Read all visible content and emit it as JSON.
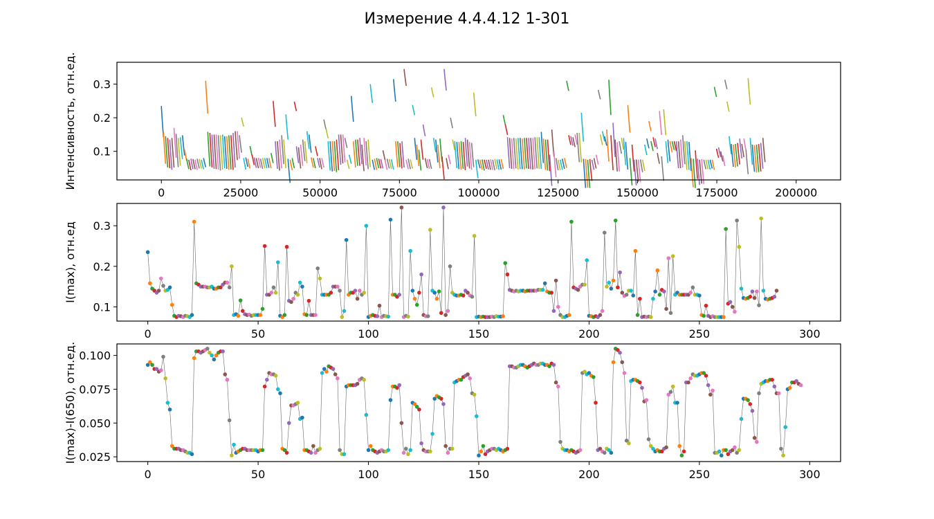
{
  "figure_title": "Измерение 4.4.4.12 1-301",
  "colors": [
    "#1f77b4",
    "#ff7f0e",
    "#2ca02c",
    "#d62728",
    "#9467bd",
    "#8c564b",
    "#e377c2",
    "#7f7f7f",
    "#bcbd22",
    "#17becf"
  ],
  "chart_data": [
    {
      "type": "line",
      "ylabel": "Интенсивность, отн.ед.",
      "xlim": [
        -14000,
        214000
      ],
      "ylim": [
        0.015,
        0.365
      ],
      "xticks": [
        0,
        25000,
        50000,
        75000,
        100000,
        125000,
        150000,
        175000,
        200000
      ],
      "xtick_labels": [
        "0",
        "25000",
        "50000",
        "75000",
        "100000",
        "125000",
        "150000",
        "175000",
        "200000"
      ],
      "yticks": [
        0.1,
        0.2,
        0.3
      ],
      "ytick_labels": [
        "0.1",
        "0.2",
        "0.3"
      ],
      "series_count": 301,
      "points_per_series": 665,
      "note_values": "each of 301 series spans ~665 x-units starting at x = 665*i, falling from I(max) toward I(max)-(I(max)-I(650))"
    },
    {
      "type": "scatter",
      "ylabel": "I(max), отн.ед",
      "xlim": [
        -14,
        314
      ],
      "ylim": [
        0.065,
        0.355
      ],
      "xticks": [
        0,
        50,
        100,
        150,
        200,
        250,
        300
      ],
      "xtick_labels": [
        "0",
        "50",
        "100",
        "150",
        "200",
        "250",
        "300"
      ],
      "yticks": [
        0.1,
        0.2,
        0.3
      ],
      "ytick_labels": [
        "0.1",
        "0.2",
        "0.3"
      ],
      "x_start": 0,
      "values": [
        0.235,
        0.158,
        0.145,
        0.14,
        0.135,
        0.14,
        0.17,
        0.152,
        0.14,
        0.142,
        0.148,
        0.105,
        0.078,
        0.075,
        0.078,
        0.077,
        0.075,
        0.078,
        0.077,
        0.075,
        0.08,
        0.31,
        0.158,
        0.155,
        0.15,
        0.15,
        0.15,
        0.148,
        0.148,
        0.15,
        0.145,
        0.145,
        0.148,
        0.148,
        0.155,
        0.16,
        0.16,
        0.148,
        0.2,
        0.08,
        0.082,
        0.078,
        0.116,
        0.09,
        0.082,
        0.08,
        0.081,
        0.078,
        0.08,
        0.08,
        0.08,
        0.08,
        0.095,
        0.25,
        0.13,
        0.13,
        0.135,
        0.148,
        0.135,
        0.21,
        0.078,
        0.075,
        0.08,
        0.248,
        0.115,
        0.112,
        0.12,
        0.135,
        0.13,
        0.16,
        0.15,
        0.082,
        0.08,
        0.115,
        0.08,
        0.08,
        0.08,
        0.195,
        0.17,
        0.13,
        0.13,
        0.13,
        0.13,
        0.135,
        0.15,
        0.15,
        0.15,
        0.14,
        0.075,
        0.09,
        0.265,
        0.13,
        0.135,
        0.135,
        0.14,
        0.12,
        0.14,
        0.13,
        0.135,
        0.3,
        0.075,
        0.078,
        0.08,
        0.078,
        0.077,
        0.103,
        0.075,
        0.078,
        0.077,
        0.076,
        0.315,
        0.13,
        0.13,
        0.125,
        0.13,
        0.345,
        0.075,
        0.078,
        0.076,
        0.238,
        0.14,
        0.12,
        0.105,
        0.135,
        0.18,
        0.08,
        0.077,
        0.077,
        0.29,
        0.14,
        0.135,
        0.12,
        0.138,
        0.085,
        0.345,
        0.08,
        0.09,
        0.2,
        0.135,
        0.13,
        0.128,
        0.128,
        0.13,
        0.128,
        0.14,
        0.135,
        0.128,
        0.125,
        0.275,
        0.075,
        0.076,
        0.075,
        0.076,
        0.075,
        0.075,
        0.075,
        0.076,
        0.075,
        0.077,
        0.076,
        0.076,
        0.077,
        0.208,
        0.18,
        0.142,
        0.14,
        0.138,
        0.14,
        0.138,
        0.14,
        0.14,
        0.138,
        0.14,
        0.14,
        0.14,
        0.14,
        0.14,
        0.142,
        0.142,
        0.142,
        0.158,
        0.138,
        0.135,
        0.135,
        0.09,
        0.165,
        0.1,
        0.08,
        0.075,
        0.075,
        0.078,
        0.08,
        0.31,
        0.148,
        0.145,
        0.142,
        0.15,
        0.155,
        0.155,
        0.215,
        0.078,
        0.077,
        0.075,
        0.077,
        0.075,
        0.08,
        0.09,
        0.283,
        0.15,
        0.16,
        0.145,
        0.165,
        0.313,
        0.148,
        0.185,
        0.135,
        0.127,
        0.13,
        0.14,
        0.14,
        0.128,
        0.238,
        0.08,
        0.12,
        0.075,
        0.076,
        0.075,
        0.076,
        0.075,
        0.12,
        0.138,
        0.19,
        0.13,
        0.142,
        0.138,
        0.095,
        0.22,
        0.085,
        0.225,
        0.13,
        0.135,
        0.13,
        0.13,
        0.13,
        0.13,
        0.13,
        0.135,
        0.148,
        0.13,
        0.13,
        0.128,
        0.08,
        0.078,
        0.103,
        0.078,
        0.075,
        0.077,
        0.075,
        0.075,
        0.075,
        0.075,
        0.075,
        0.292,
        0.108,
        0.112,
        0.1,
        0.088,
        0.313,
        0.248,
        0.145,
        0.122,
        0.12,
        0.122,
        0.125,
        0.138,
        0.122,
        0.138,
        0.104,
        0.318,
        0.14,
        0.12,
        0.118,
        0.12,
        0.122,
        0.125,
        0.14
      ]
    },
    {
      "type": "scatter",
      "ylabel": "I(max)-I(650), отн.ед.",
      "xlim": [
        -14,
        314
      ],
      "ylim": [
        0.0215,
        0.1085
      ],
      "xticks": [
        0,
        50,
        100,
        150,
        200,
        250,
        300
      ],
      "xtick_labels": [
        "0",
        "50",
        "100",
        "150",
        "200",
        "250",
        "300"
      ],
      "yticks": [
        0.025,
        0.05,
        0.075,
        0.1
      ],
      "ytick_labels": [
        "0.025",
        "0.050",
        "0.075",
        "0.100"
      ],
      "x_start": 0,
      "values": [
        0.093,
        0.095,
        0.093,
        0.09,
        0.09,
        0.088,
        0.089,
        0.099,
        0.083,
        0.065,
        0.06,
        0.033,
        0.031,
        0.031,
        0.031,
        0.03,
        0.03,
        0.029,
        0.028,
        0.028,
        0.027,
        0.098,
        0.103,
        0.103,
        0.102,
        0.103,
        0.104,
        0.105,
        0.102,
        0.1,
        0.097,
        0.1,
        0.102,
        0.103,
        0.103,
        0.086,
        0.082,
        0.052,
        0.026,
        0.034,
        0.028,
        0.029,
        0.03,
        0.031,
        0.031,
        0.03,
        0.03,
        0.03,
        0.03,
        0.03,
        0.029,
        0.03,
        0.03,
        0.077,
        0.082,
        0.087,
        0.086,
        0.086,
        0.085,
        0.075,
        0.072,
        0.031,
        0.03,
        0.028,
        0.05,
        0.063,
        0.063,
        0.064,
        0.065,
        0.053,
        0.054,
        0.03,
        0.03,
        0.029,
        0.028,
        0.033,
        0.028,
        0.03,
        0.031,
        0.087,
        0.09,
        0.088,
        0.092,
        0.091,
        0.09,
        0.086,
        0.083,
        0.03,
        0.027,
        0.027,
        0.077,
        0.078,
        0.078,
        0.078,
        0.078,
        0.079,
        0.082,
        0.083,
        0.082,
        0.056,
        0.03,
        0.033,
        0.03,
        0.029,
        0.028,
        0.029,
        0.03,
        0.029,
        0.029,
        0.03,
        0.067,
        0.077,
        0.077,
        0.076,
        0.078,
        0.05,
        0.028,
        0.031,
        0.027,
        0.03,
        0.065,
        0.064,
        0.062,
        0.06,
        0.035,
        0.03,
        0.029,
        0.029,
        0.029,
        0.042,
        0.068,
        0.07,
        0.069,
        0.068,
        0.064,
        0.033,
        0.028,
        0.031,
        0.031,
        0.08,
        0.081,
        0.082,
        0.082,
        0.084,
        0.085,
        0.086,
        0.083,
        0.072,
        0.071,
        0.055,
        0.026,
        0.029,
        0.033,
        0.027,
        0.029,
        0.03,
        0.031,
        0.031,
        0.03,
        0.031,
        0.03,
        0.029,
        0.03,
        0.031,
        0.092,
        0.092,
        0.091,
        0.091,
        0.092,
        0.093,
        0.093,
        0.092,
        0.091,
        0.092,
        0.093,
        0.094,
        0.093,
        0.093,
        0.094,
        0.094,
        0.093,
        0.093,
        0.092,
        0.094,
        0.093,
        0.08,
        0.077,
        0.036,
        0.031,
        0.03,
        0.03,
        0.029,
        0.03,
        0.029,
        0.028,
        0.029,
        0.03,
        0.087,
        0.088,
        0.086,
        0.087,
        0.085,
        0.084,
        0.065,
        0.03,
        0.031,
        0.029,
        0.028,
        0.031,
        0.03,
        0.028,
        0.095,
        0.105,
        0.104,
        0.102,
        0.095,
        0.087,
        0.037,
        0.035,
        0.081,
        0.082,
        0.082,
        0.081,
        0.08,
        0.076,
        0.066,
        0.067,
        0.038,
        0.033,
        0.031,
        0.029,
        0.03,
        0.029,
        0.029,
        0.031,
        0.032,
        0.071,
        0.073,
        0.077,
        0.065,
        0.065,
        0.033,
        0.026,
        0.029,
        0.08,
        0.08,
        0.083,
        0.086,
        0.085,
        0.085,
        0.086,
        0.087,
        0.087,
        0.085,
        0.078,
        0.071,
        0.074,
        0.028,
        0.028,
        0.029,
        0.026,
        0.03,
        0.03,
        0.027,
        0.029,
        0.03,
        0.032,
        0.028,
        0.03,
        0.053,
        0.068,
        0.068,
        0.067,
        0.064,
        0.059,
        0.039,
        0.036,
        0.072,
        0.079,
        0.08,
        0.081,
        0.081,
        0.082,
        0.082,
        0.077,
        0.072,
        0.072,
        0.031,
        0.026,
        0.047,
        0.075,
        0.076,
        0.08,
        0.08,
        0.081,
        0.079,
        0.078
      ]
    }
  ]
}
